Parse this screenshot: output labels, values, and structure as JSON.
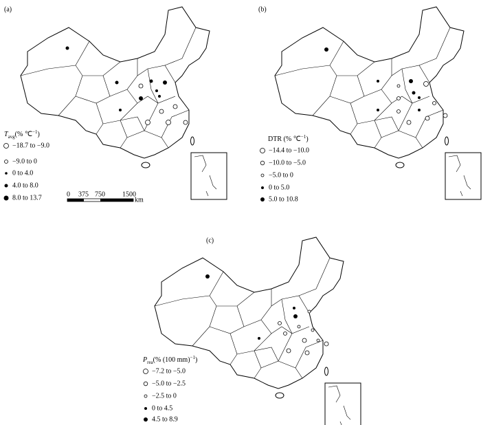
{
  "panels": [
    {
      "label": "(a)",
      "legend": {
        "title": {
          "symbol": "T",
          "subscript": "avg",
          "unit": "(%  ℃",
          "exponent": "−1",
          "close": ")"
        },
        "entries": [
          "−18.7 to −9.0",
          "−9.0 to 0",
          "0 to 4.0",
          "4.0 to 8.0",
          "8.0 to 13.7"
        ]
      },
      "scale_bar": {
        "ticks": [
          "0",
          "375",
          "750",
          "1500"
        ],
        "unit": "km"
      }
    },
    {
      "label": "(b)",
      "legend": {
        "title": {
          "unit": "DTR (%  ℃",
          "exponent": "−1",
          "close": ")"
        },
        "entries": [
          "−14.4 to −10.0",
          "−10.0 to −5.0",
          "−5.0 to 0",
          "0 to 5.0",
          "5.0 to 10.8"
        ]
      }
    },
    {
      "label": "(c)",
      "legend": {
        "title": {
          "symbol": "P",
          "subscript": "rea",
          "unit": "(%  (100 mm)",
          "exponent": "−1",
          "close": ")"
        },
        "entries": [
          "−7.2 to −5.0",
          "−5.0 to −2.5",
          "−2.5 to 0",
          "0 to 4.5",
          "4.5 to 8.9"
        ]
      }
    }
  ]
}
